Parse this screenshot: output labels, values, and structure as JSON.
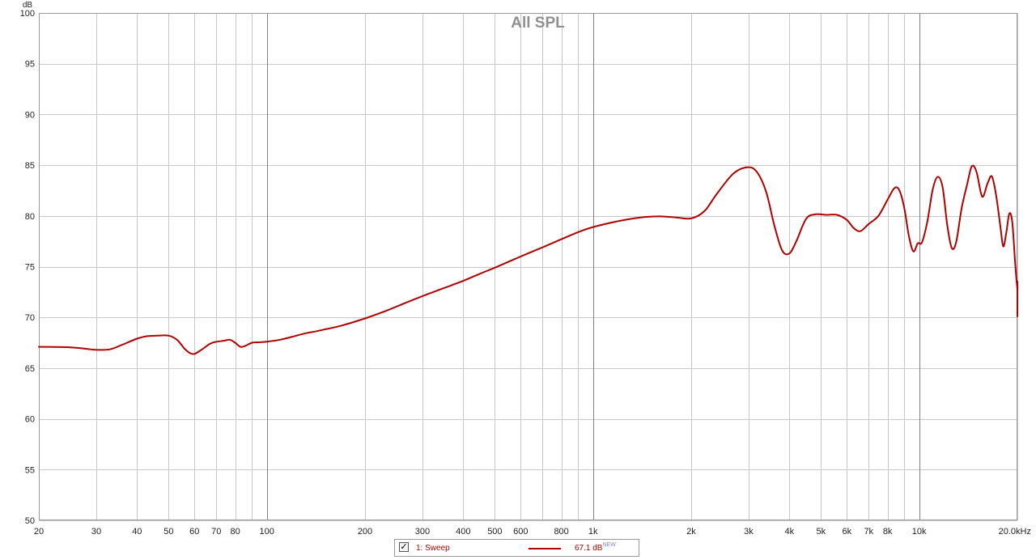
{
  "chart_data": {
    "type": "line",
    "title": "All SPL",
    "ylabel": "dB",
    "xscale": "log",
    "xlim": [
      20,
      20000
    ],
    "ylim": [
      50,
      100
    ],
    "grid": true,
    "x_ticks": [
      {
        "v": 20,
        "label": "20"
      },
      {
        "v": 30,
        "label": "30"
      },
      {
        "v": 40,
        "label": "40"
      },
      {
        "v": 50,
        "label": "50"
      },
      {
        "v": 60,
        "label": "60"
      },
      {
        "v": 70,
        "label": "70"
      },
      {
        "v": 80,
        "label": "80"
      },
      {
        "v": 100,
        "label": "100"
      },
      {
        "v": 200,
        "label": "200"
      },
      {
        "v": 300,
        "label": "300"
      },
      {
        "v": 400,
        "label": "400"
      },
      {
        "v": 500,
        "label": "500"
      },
      {
        "v": 600,
        "label": "600"
      },
      {
        "v": 800,
        "label": "800"
      },
      {
        "v": 1000,
        "label": "1k"
      },
      {
        "v": 2000,
        "label": "2k"
      },
      {
        "v": 3000,
        "label": "3k"
      },
      {
        "v": 4000,
        "label": "4k"
      },
      {
        "v": 5000,
        "label": "5k"
      },
      {
        "v": 6000,
        "label": "6k"
      },
      {
        "v": 7000,
        "label": "7k"
      },
      {
        "v": 8000,
        "label": "8k"
      },
      {
        "v": 10000,
        "label": "10k"
      },
      {
        "v": 20000,
        "label": "20.0kHz"
      }
    ],
    "x_minor_grid": [
      20,
      30,
      40,
      50,
      60,
      70,
      80,
      90,
      100,
      200,
      300,
      400,
      500,
      600,
      700,
      800,
      900,
      1000,
      2000,
      3000,
      4000,
      5000,
      6000,
      7000,
      8000,
      9000,
      10000,
      20000
    ],
    "x_major_grid": [
      100,
      1000,
      10000
    ],
    "y_ticks": [
      {
        "v": 50,
        "label": "50"
      },
      {
        "v": 55,
        "label": "55"
      },
      {
        "v": 60,
        "label": "60"
      },
      {
        "v": 65,
        "label": "65"
      },
      {
        "v": 70,
        "label": "70"
      },
      {
        "v": 75,
        "label": "75"
      },
      {
        "v": 80,
        "label": "80"
      },
      {
        "v": 85,
        "label": "85"
      },
      {
        "v": 90,
        "label": "90"
      },
      {
        "v": 95,
        "label": "95"
      },
      {
        "v": 100,
        "label": "100"
      }
    ],
    "colors": {
      "series": "#b00000",
      "grid": "#c8c8c8",
      "grid_major": "#808080",
      "frame": "#9a9a9a",
      "title": "#909090"
    },
    "series": [
      {
        "name": "1: Sweep",
        "points": [
          [
            20,
            67.1
          ],
          [
            25,
            67.05
          ],
          [
            28,
            66.9
          ],
          [
            30,
            66.8
          ],
          [
            33,
            66.85
          ],
          [
            36,
            67.3
          ],
          [
            40,
            67.9
          ],
          [
            43,
            68.15
          ],
          [
            46,
            68.2
          ],
          [
            50,
            68.2
          ],
          [
            53,
            67.8
          ],
          [
            56,
            66.9
          ],
          [
            58,
            66.5
          ],
          [
            60,
            66.4
          ],
          [
            63,
            66.8
          ],
          [
            67,
            67.4
          ],
          [
            70,
            67.6
          ],
          [
            74,
            67.7
          ],
          [
            77,
            67.8
          ],
          [
            80,
            67.5
          ],
          [
            83,
            67.1
          ],
          [
            86,
            67.2
          ],
          [
            90,
            67.5
          ],
          [
            95,
            67.55
          ],
          [
            100,
            67.6
          ],
          [
            110,
            67.8
          ],
          [
            120,
            68.1
          ],
          [
            130,
            68.4
          ],
          [
            140,
            68.6
          ],
          [
            150,
            68.8
          ],
          [
            170,
            69.2
          ],
          [
            200,
            69.9
          ],
          [
            230,
            70.6
          ],
          [
            260,
            71.3
          ],
          [
            300,
            72.1
          ],
          [
            350,
            72.9
          ],
          [
            400,
            73.6
          ],
          [
            450,
            74.3
          ],
          [
            500,
            74.9
          ],
          [
            600,
            76.0
          ],
          [
            700,
            76.9
          ],
          [
            800,
            77.7
          ],
          [
            900,
            78.4
          ],
          [
            1000,
            78.9
          ],
          [
            1200,
            79.5
          ],
          [
            1400,
            79.85
          ],
          [
            1600,
            79.95
          ],
          [
            1800,
            79.85
          ],
          [
            2000,
            79.75
          ],
          [
            2200,
            80.5
          ],
          [
            2400,
            82.2
          ],
          [
            2700,
            84.2
          ],
          [
            3000,
            84.8
          ],
          [
            3200,
            84.2
          ],
          [
            3400,
            82.3
          ],
          [
            3600,
            79.0
          ],
          [
            3800,
            76.6
          ],
          [
            4000,
            76.3
          ],
          [
            4200,
            77.5
          ],
          [
            4500,
            79.7
          ],
          [
            4800,
            80.15
          ],
          [
            5200,
            80.1
          ],
          [
            5600,
            80.1
          ],
          [
            6000,
            79.6
          ],
          [
            6300,
            78.8
          ],
          [
            6600,
            78.5
          ],
          [
            7000,
            79.2
          ],
          [
            7500,
            80.0
          ],
          [
            8000,
            81.6
          ],
          [
            8400,
            82.75
          ],
          [
            8700,
            82.5
          ],
          [
            9000,
            80.8
          ],
          [
            9300,
            78.0
          ],
          [
            9600,
            76.5
          ],
          [
            9900,
            77.3
          ],
          [
            10200,
            77.4
          ],
          [
            10600,
            79.5
          ],
          [
            11000,
            82.6
          ],
          [
            11400,
            83.85
          ],
          [
            11800,
            82.8
          ],
          [
            12200,
            79.0
          ],
          [
            12600,
            76.8
          ],
          [
            13000,
            77.5
          ],
          [
            13500,
            80.8
          ],
          [
            14000,
            83.0
          ],
          [
            14500,
            84.9
          ],
          [
            15000,
            84.3
          ],
          [
            15600,
            81.9
          ],
          [
            16200,
            83.2
          ],
          [
            16700,
            83.9
          ],
          [
            17200,
            82.1
          ],
          [
            17700,
            79.2
          ],
          [
            18100,
            77.0
          ],
          [
            18500,
            78.4
          ],
          [
            18900,
            80.25
          ],
          [
            19300,
            79.3
          ],
          [
            19700,
            75.2
          ],
          [
            20100,
            72.8
          ],
          [
            20500,
            73.5
          ],
          [
            20900,
            73.4
          ],
          [
            21300,
            72.9
          ],
          [
            21800,
            70.1
          ]
        ]
      }
    ],
    "legend": {
      "placement": "bottom-center",
      "checked": true,
      "checkbox_mark": "✓",
      "label": "1: Sweep",
      "value": "67.1 dB",
      "badge": "NEW"
    }
  }
}
